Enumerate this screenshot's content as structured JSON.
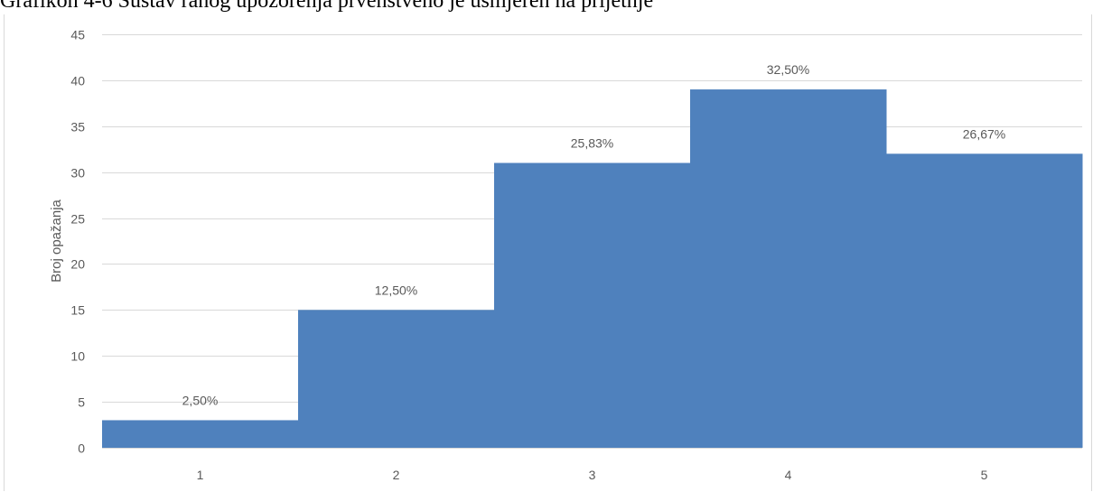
{
  "caption": "Grafikon 4-6 Sustav ranog upozorenja prvenstveno je usmjeren na prijetnje",
  "colors": {
    "bar": "#4f81bd",
    "grid": "#d9d9d9",
    "text": "#595959"
  },
  "chart_data": {
    "type": "bar",
    "title": "",
    "xlabel": "",
    "ylabel": "Broj opažanja",
    "categories": [
      "1",
      "2",
      "3",
      "4",
      "5"
    ],
    "values": [
      3,
      15,
      31,
      39,
      32
    ],
    "data_labels": [
      "2,50%",
      "12,50%",
      "25,83%",
      "32,50%",
      "26,67%"
    ],
    "ylim": [
      0,
      45
    ],
    "yticks": [
      0,
      5,
      10,
      15,
      20,
      25,
      30,
      35,
      40,
      45
    ],
    "grid": true,
    "legend": "none"
  }
}
